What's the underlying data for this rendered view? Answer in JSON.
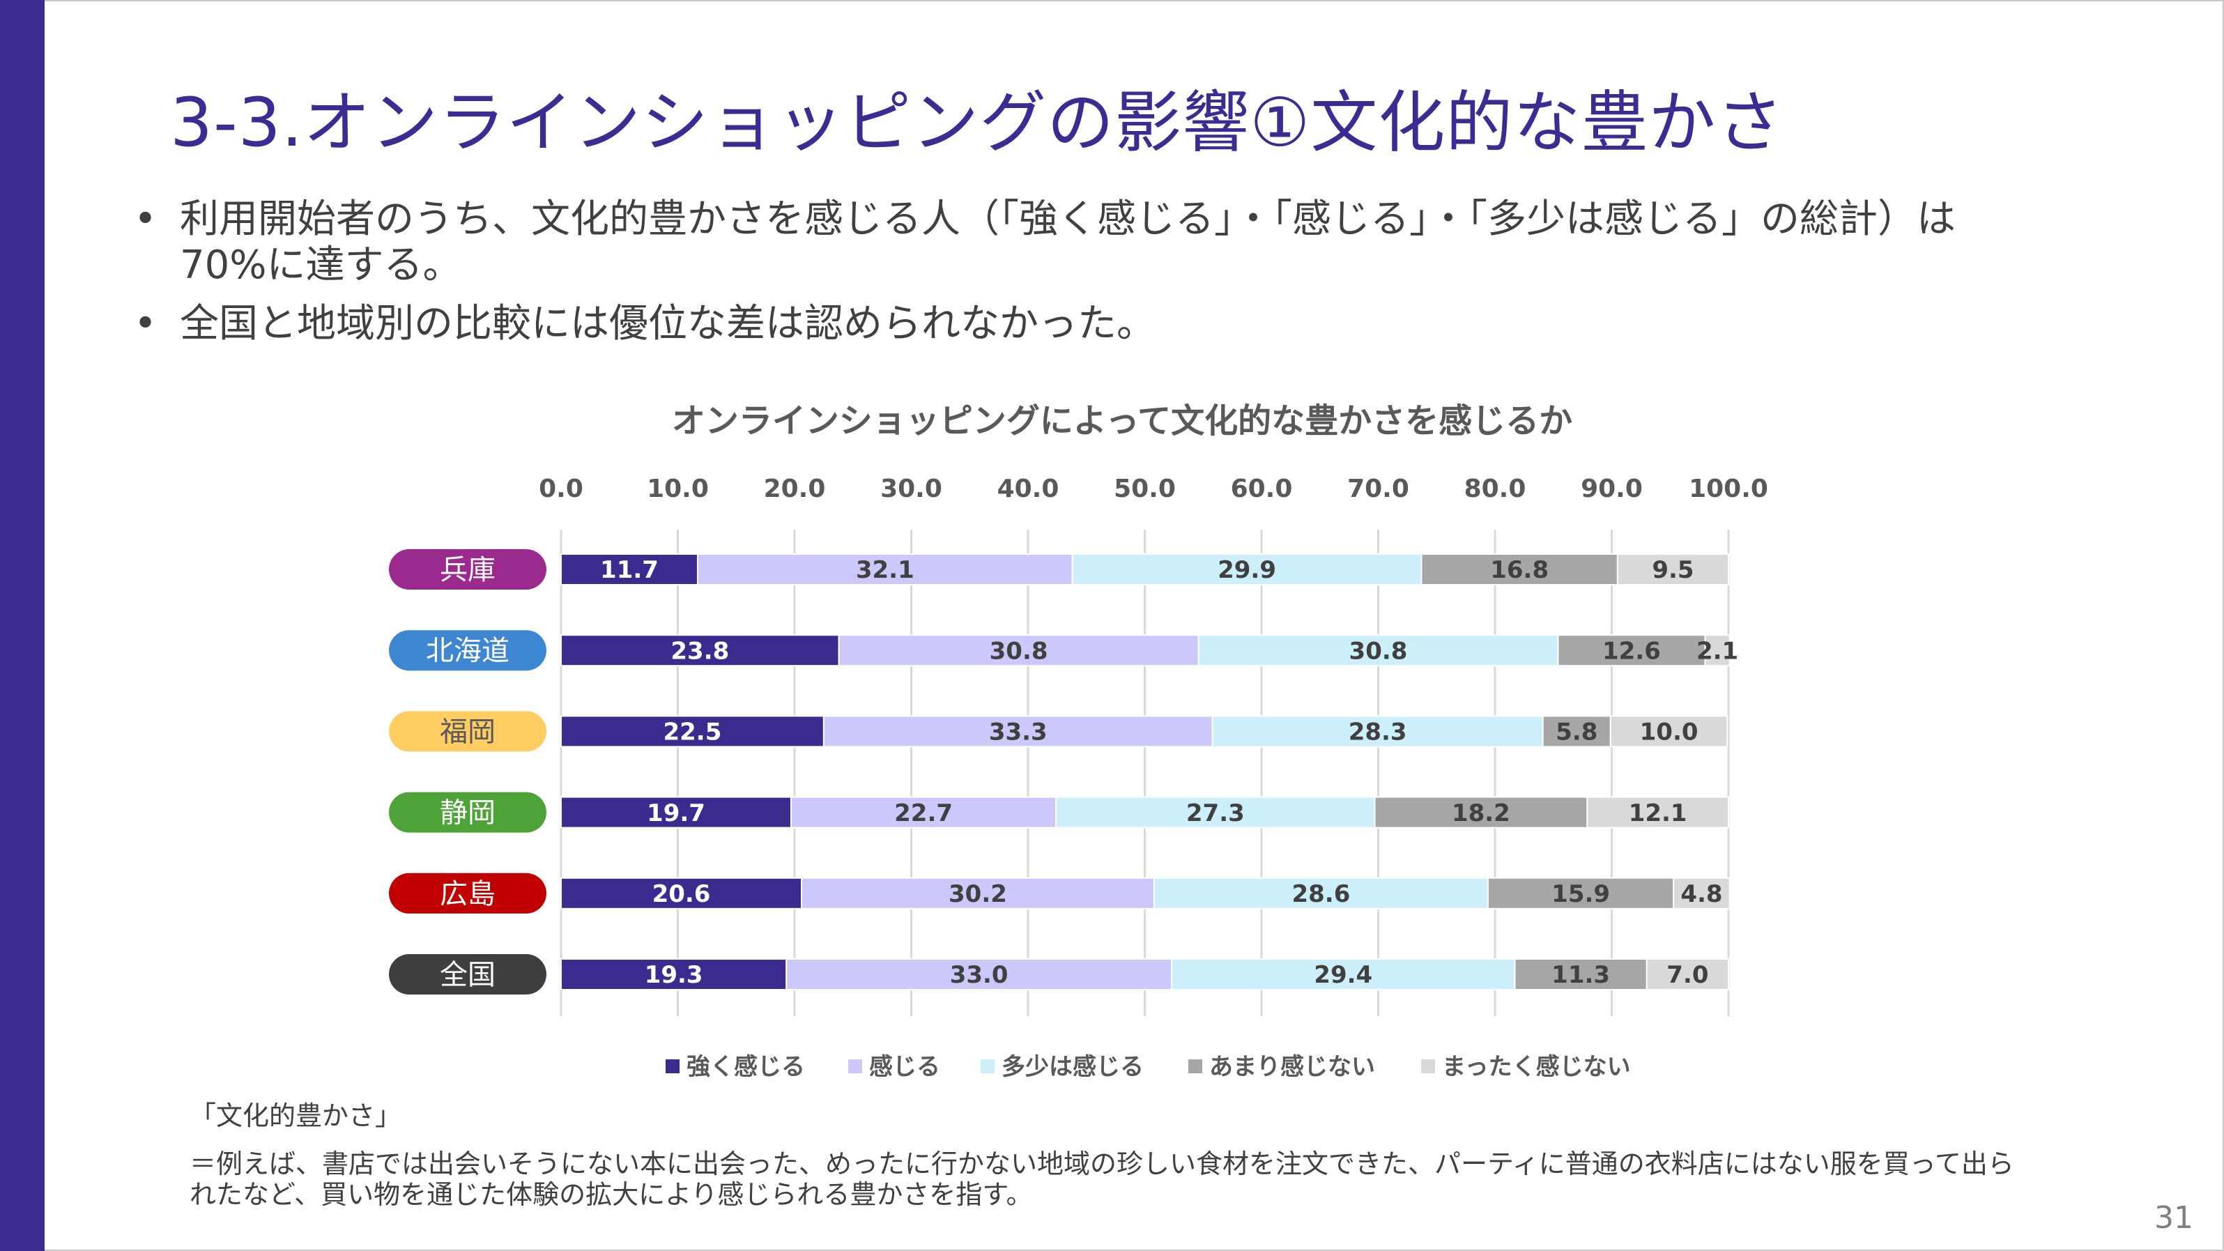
{
  "title": "3-3.オンラインショッピングの影響①文化的な豊かさ",
  "bullets": [
    "利用開始者のうち、文化的豊かさを感じる人（「強く感じる」・「感じる」・「多少は感じる」の総計）は70%に達する。",
    "全国と地域別の比較には優位な差は認められなかった。"
  ],
  "footnote": {
    "label": "「文化的豊かさ」",
    "text": "＝例えば、書店では出会いそうにない本に出会った、めったに行かない地域の珍しい食材を注文できた、パーティに普通の衣料店にはない服を買って出られたなど、買い物を通じた体験の拡大により感じられる豊かさを指す。"
  },
  "page_number": "31",
  "chart_data": {
    "type": "bar",
    "orientation": "horizontal",
    "stacked": true,
    "title": "オンラインショッピングによって文化的な豊かさを感じるか",
    "xlim": [
      0,
      100
    ],
    "x_ticks": [
      "0.0",
      "10.0",
      "20.0",
      "30.0",
      "40.0",
      "50.0",
      "60.0",
      "70.0",
      "80.0",
      "90.0",
      "100.0"
    ],
    "x_axis_position": "top",
    "grid": "vertical",
    "legend_position": "bottom",
    "categories": [
      "兵庫",
      "北海道",
      "福岡",
      "静岡",
      "広島",
      "全国"
    ],
    "category_colors": [
      "#9b2a8f",
      "#3d86d2",
      "#ffcd62",
      "#4da337",
      "#c00000",
      "#3f3f3f"
    ],
    "category_text_colors": [
      "#ffffff",
      "#ffffff",
      "#595959",
      "#ffffff",
      "#ffffff",
      "#ffffff"
    ],
    "series": [
      {
        "name": "強く感じる",
        "color": "#3c2a8f",
        "label_color": "#ffffff",
        "values": [
          11.7,
          23.8,
          22.5,
          19.7,
          20.6,
          19.3
        ]
      },
      {
        "name": "感じる",
        "color": "#ccc8fb",
        "label_color": "#404040",
        "values": [
          32.1,
          30.8,
          33.3,
          22.7,
          30.2,
          33.0
        ]
      },
      {
        "name": "多少は感じる",
        "color": "#cdeffc",
        "label_color": "#404040",
        "values": [
          29.9,
          30.8,
          28.3,
          27.3,
          28.6,
          29.4
        ]
      },
      {
        "name": "あまり感じない",
        "color": "#a6a6a6",
        "label_color": "#404040",
        "values": [
          16.8,
          12.6,
          5.8,
          18.2,
          15.9,
          11.3
        ]
      },
      {
        "name": "まったく感じない",
        "color": "#d9d9d9",
        "label_color": "#404040",
        "values": [
          9.5,
          2.1,
          10.0,
          12.1,
          4.8,
          7.0
        ]
      }
    ]
  }
}
